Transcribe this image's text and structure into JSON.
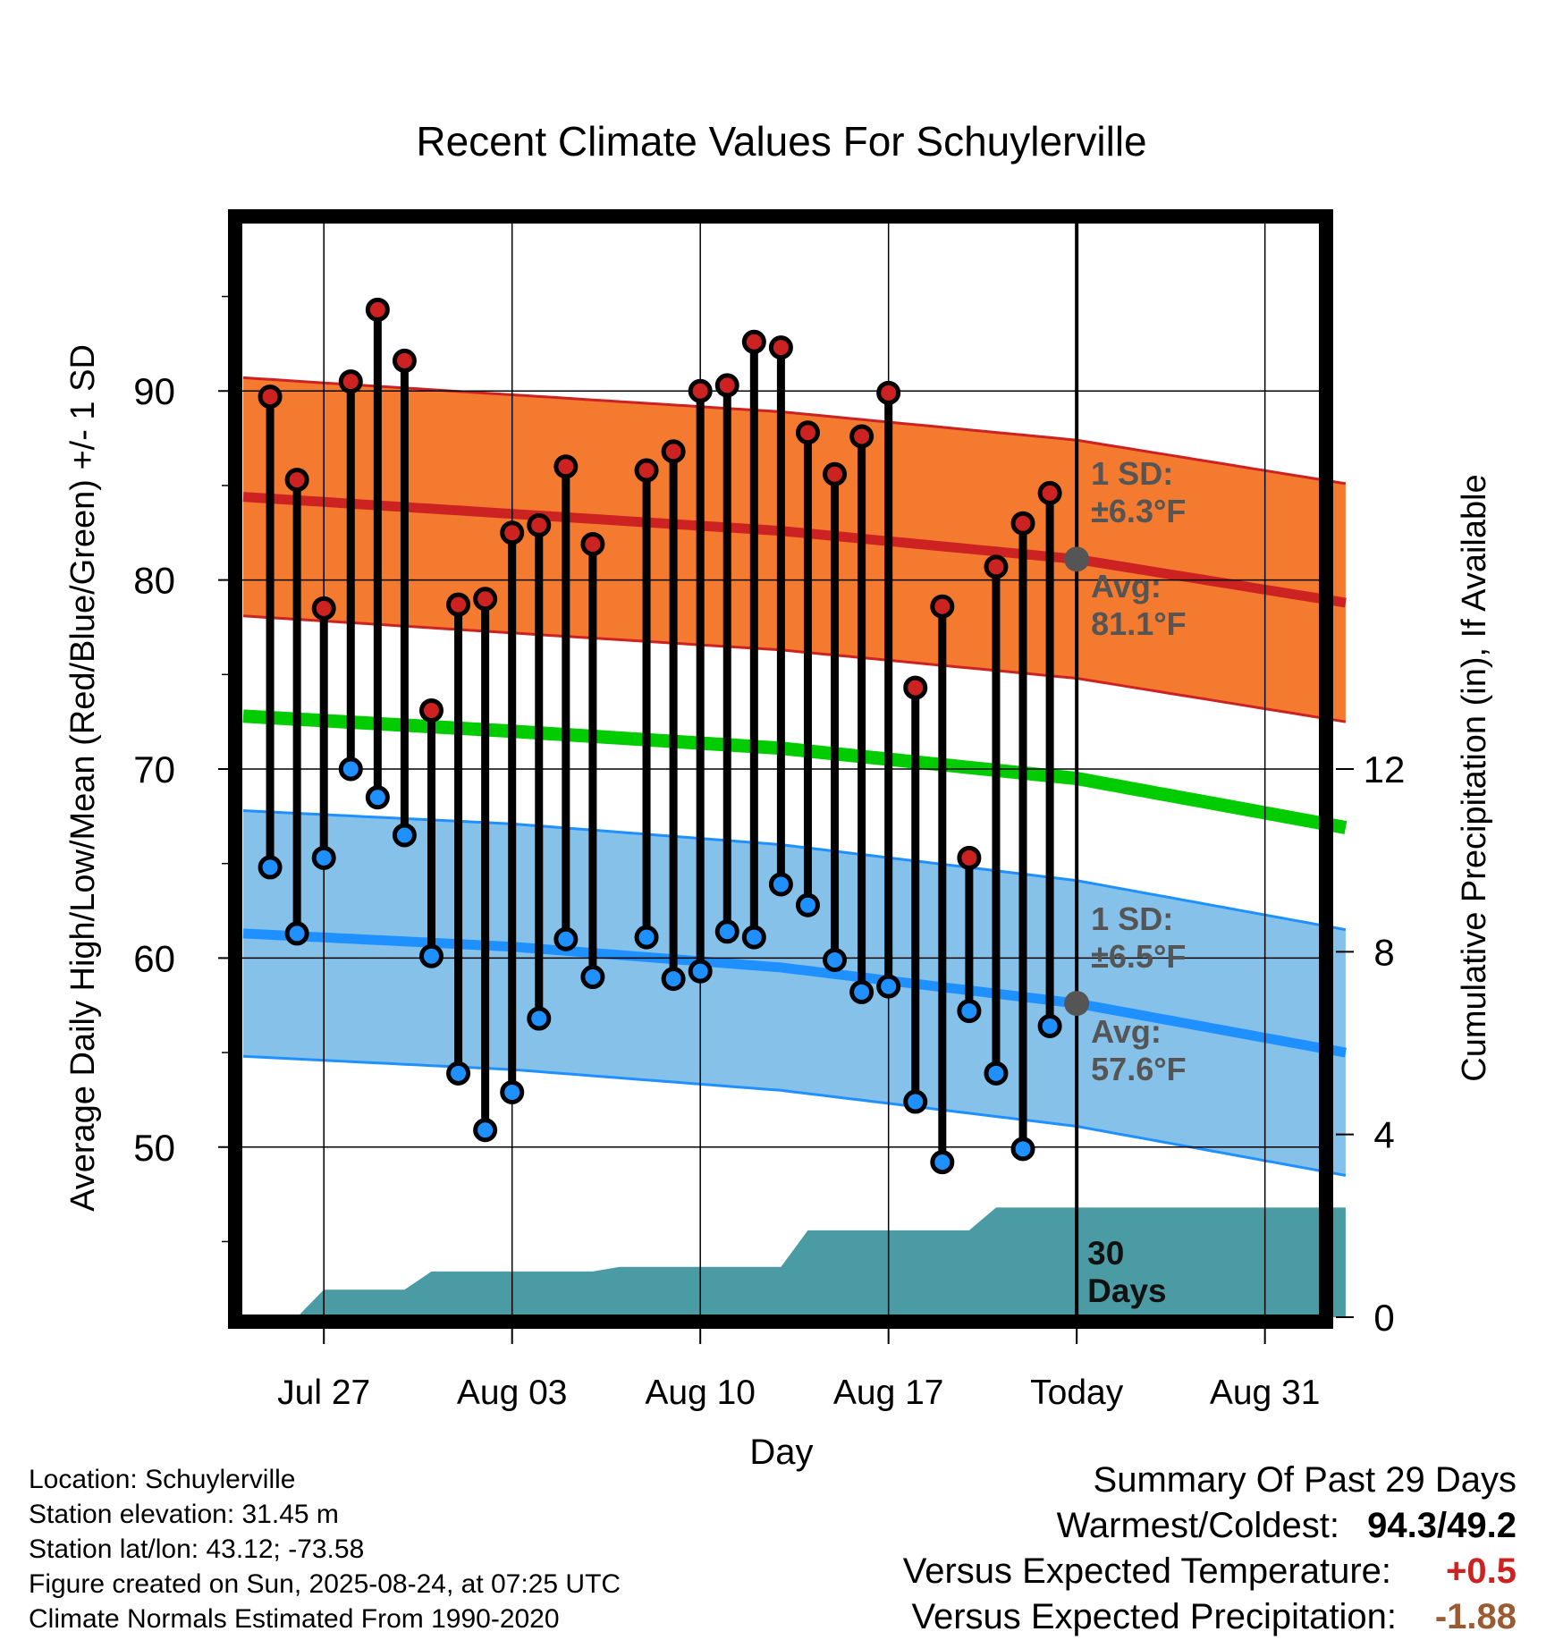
{
  "chart_data": {
    "type": "line",
    "title": "Recent Climate Values For Schuylerville",
    "xlabel": "Day",
    "ylabel_left": "Average Daily High/Low/Mean (Red/Blue/Green) +/- 1 SD",
    "ylabel_right": "Cumulative Precipitation (in), If Available",
    "x_ticks": [
      "Jul 27",
      "Aug 03",
      "Aug 10",
      "Aug 17",
      "Today",
      "Aug 31"
    ],
    "x_range": [
      "2025-07-24",
      "2025-09-03"
    ],
    "today": "2025-08-24",
    "ylim_left": [
      41,
      99
    ],
    "y_ticks_left": [
      50,
      60,
      70,
      80,
      90
    ],
    "ylim_right": [
      0,
      24
    ],
    "y_ticks_right": [
      0,
      4,
      8,
      12
    ],
    "grid": true,
    "dates": [
      "2025-07-25",
      "2025-07-26",
      "2025-07-27",
      "2025-07-28",
      "2025-07-29",
      "2025-07-30",
      "2025-07-31",
      "2025-08-01",
      "2025-08-02",
      "2025-08-03",
      "2025-08-04",
      "2025-08-05",
      "2025-08-06",
      "2025-08-08",
      "2025-08-09",
      "2025-08-10",
      "2025-08-11",
      "2025-08-12",
      "2025-08-13",
      "2025-08-14",
      "2025-08-15",
      "2025-08-16",
      "2025-08-17",
      "2025-08-18",
      "2025-08-19",
      "2025-08-20",
      "2025-08-21",
      "2025-08-22",
      "2025-08-23"
    ],
    "daily_high": [
      89.7,
      85.3,
      78.5,
      90.5,
      94.3,
      91.6,
      73.1,
      78.7,
      79.0,
      82.5,
      82.9,
      86.0,
      81.9,
      85.8,
      86.8,
      90.0,
      90.3,
      92.6,
      92.3,
      87.8,
      85.6,
      87.6,
      89.9,
      74.3,
      78.6,
      65.3,
      80.7,
      83.0,
      84.6
    ],
    "daily_low": [
      64.8,
      61.3,
      65.3,
      70.0,
      68.5,
      66.5,
      60.1,
      53.9,
      50.9,
      52.9,
      56.8,
      61.0,
      59.0,
      61.1,
      58.9,
      59.3,
      61.4,
      61.1,
      63.9,
      62.8,
      59.9,
      58.2,
      58.5,
      52.4,
      49.2,
      57.2,
      53.9,
      49.9,
      56.4
    ],
    "normals": {
      "x": [
        "2025-07-24",
        "2025-08-03",
        "2025-08-13",
        "2025-08-24",
        "2025-09-03"
      ],
      "high_avg": [
        84.4,
        83.5,
        82.6,
        81.1,
        78.8
      ],
      "high_sd": 6.3,
      "low_avg": [
        61.3,
        60.6,
        59.5,
        57.6,
        55.0
      ],
      "low_sd": 6.5,
      "mean": [
        72.8,
        72.0,
        71.1,
        69.5,
        66.9
      ]
    },
    "precip_cumulative": {
      "x": [
        "2025-07-24",
        "2025-07-26",
        "2025-07-27",
        "2025-07-30",
        "2025-07-31",
        "2025-08-06",
        "2025-08-07",
        "2025-08-13",
        "2025-08-14",
        "2025-08-20",
        "2025-08-21",
        "2025-09-03"
      ],
      "values": [
        0,
        0,
        0.6,
        0.6,
        1.0,
        1.0,
        1.1,
        1.1,
        1.9,
        1.9,
        2.4,
        2.4
      ]
    },
    "series": [
      {
        "name": "Daily High",
        "color": "#cc2222"
      },
      {
        "name": "Daily Low",
        "color": "#1e90ff"
      },
      {
        "name": "Mean",
        "color": "#00cc00"
      },
      {
        "name": "Precipitation",
        "color": "#4a9ba3"
      }
    ],
    "annotations": {
      "high_sd_line1": "1 SD:",
      "high_sd_line2": "±6.3°F",
      "high_avg_line1": "Avg:",
      "high_avg_line2": "81.1°F",
      "low_sd_line1": "1 SD:",
      "low_sd_line2": "±6.5°F",
      "low_avg_line1": "Avg:",
      "low_avg_line2": "57.6°F",
      "precip_line1": "30",
      "precip_line2": "Days"
    }
  },
  "colors": {
    "high_band": "#f47a2f",
    "high_line": "#cc2222",
    "low_band": "#85c1e9",
    "low_line": "#1e90ff",
    "mean_line": "#00cc00",
    "precip_fill": "#4a9ba3",
    "annotation_text": "#555555"
  },
  "footer": {
    "location": "Location: Schuylerville",
    "elevation": "Station elevation: 31.45 m",
    "latlon": "Station lat/lon: 43.12; -73.58",
    "created": "Figure created on Sun, 2025-08-24, at 07:25 UTC",
    "normals": "Climate Normals Estimated From 1990-2020"
  },
  "summary": {
    "title": "Summary Of Past 29 Days",
    "warmest_label": "Warmest/Coldest:",
    "warmest_value": "94.3/49.2",
    "temp_label": "Versus Expected Temperature:",
    "temp_value": "+0.5",
    "precip_label": "Versus Expected Precipitation:",
    "precip_value": "-1.88"
  }
}
